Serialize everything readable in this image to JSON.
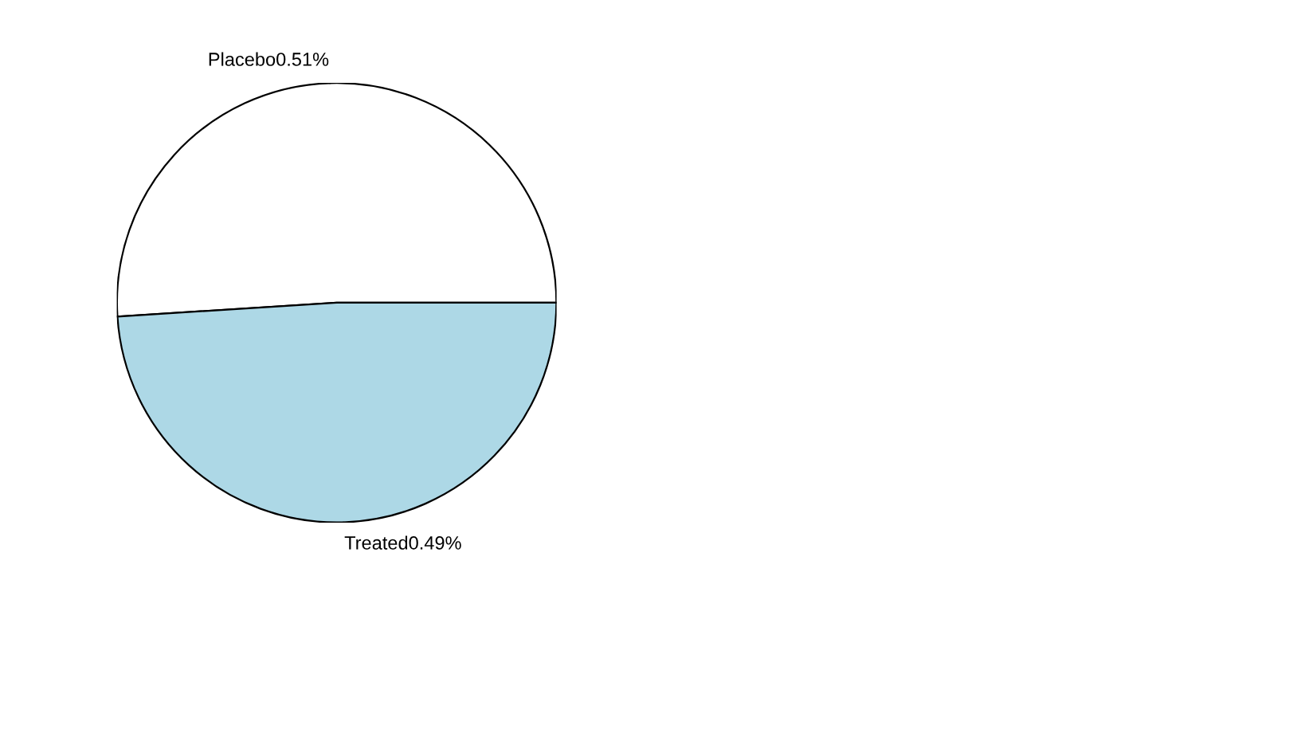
{
  "chart_data": {
    "type": "pie",
    "categories": [
      "Placebo",
      "Treated"
    ],
    "values": [
      0.51,
      0.49
    ],
    "value_labels": [
      "0.51%",
      "0.49%"
    ],
    "colors": [
      "#ffffff",
      "#add8e6"
    ]
  }
}
